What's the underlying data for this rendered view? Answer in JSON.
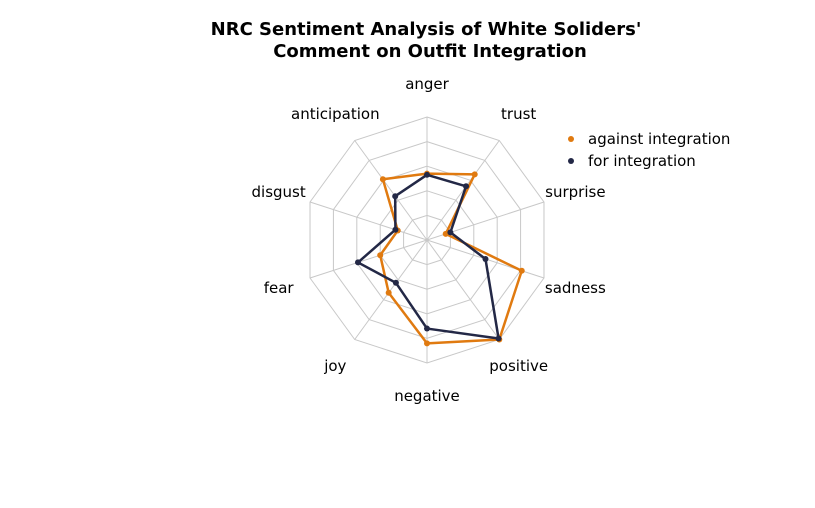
{
  "chart_data": {
    "type": "radar",
    "title_lines": [
      "NRC Sentiment Analysis of White Soliders'",
      "Comment on Outfit Integration"
    ],
    "axes": [
      "anger",
      "trust",
      "surprise",
      "sadness",
      "positive",
      "negative",
      "joy",
      "fear",
      "disgust",
      "anticipation"
    ],
    "rmax": 1.0,
    "grid_levels": [
      0.2,
      0.4,
      0.6,
      0.8,
      1.0
    ],
    "grid": true,
    "legend_position": "top-right",
    "series": [
      {
        "name": "against integration",
        "color": "#e07a10",
        "values": [
          0.54,
          0.66,
          0.16,
          0.81,
          1.0,
          0.84,
          0.53,
          0.4,
          0.25,
          0.61
        ]
      },
      {
        "name": "for integration",
        "color": "#232846",
        "values": [
          0.53,
          0.54,
          0.2,
          0.5,
          0.99,
          0.72,
          0.43,
          0.59,
          0.27,
          0.44
        ]
      }
    ]
  }
}
